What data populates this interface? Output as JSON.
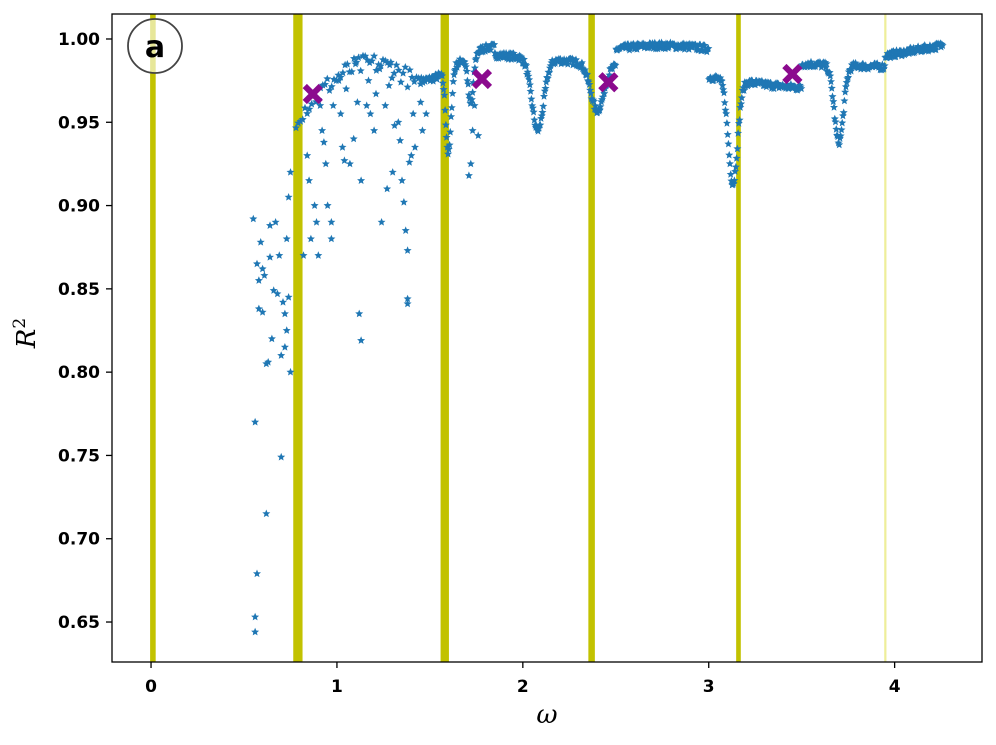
{
  "chart_data": {
    "type": "scatter",
    "xlabel": "ω",
    "ylabel": "R",
    "ylabel_superscript": "2",
    "panel_label": "a",
    "xlim": [
      -0.21,
      4.47
    ],
    "ylim": [
      0.626,
      1.015
    ],
    "x_ticks": [
      0,
      1,
      2,
      3,
      4
    ],
    "x_tick_labels": [
      "0",
      "1",
      "2",
      "3",
      "4"
    ],
    "y_ticks": [
      0.65,
      0.7,
      0.75,
      0.8,
      0.85,
      0.9,
      0.95,
      1.0
    ],
    "y_tick_labels": [
      "0.65",
      "0.70",
      "0.75",
      "0.80",
      "0.85",
      "0.90",
      "0.95",
      "1.00"
    ],
    "grid": false,
    "colors": {
      "points": "#1f77b4",
      "markers": "#8b0a8e",
      "bands": "#c2c200",
      "faint_band": "#eeee9a"
    },
    "vertical_bands": [
      {
        "x": 0.01,
        "width": 0.03,
        "opacity": 1.0
      },
      {
        "x": 0.79,
        "width": 0.05,
        "opacity": 1.0
      },
      {
        "x": 1.58,
        "width": 0.045,
        "opacity": 1.0
      },
      {
        "x": 2.37,
        "width": 0.035,
        "opacity": 1.0
      },
      {
        "x": 3.16,
        "width": 0.025,
        "opacity": 1.0
      },
      {
        "x": 3.95,
        "width": 0.012,
        "opacity": 0.45
      }
    ],
    "highlight_points": [
      {
        "x": 0.87,
        "y": 0.967
      },
      {
        "x": 1.78,
        "y": 0.976
      },
      {
        "x": 2.46,
        "y": 0.974
      },
      {
        "x": 3.45,
        "y": 0.979
      }
    ],
    "scatter_outliers": [
      [
        0.55,
        0.892
      ],
      [
        0.56,
        0.77
      ],
      [
        0.57,
        0.679
      ],
      [
        0.56,
        0.653
      ],
      [
        0.56,
        0.644
      ],
      [
        0.62,
        0.715
      ],
      [
        0.7,
        0.749
      ],
      [
        0.57,
        0.865
      ],
      [
        0.58,
        0.855
      ],
      [
        0.59,
        0.878
      ],
      [
        0.6,
        0.836
      ],
      [
        0.62,
        0.805
      ],
      [
        0.63,
        0.806
      ],
      [
        0.65,
        0.82
      ],
      [
        0.66,
        0.849
      ],
      [
        0.64,
        0.888
      ],
      [
        0.67,
        0.89
      ],
      [
        0.68,
        0.847
      ],
      [
        0.69,
        0.87
      ],
      [
        0.71,
        0.842
      ],
      [
        0.72,
        0.835
      ],
      [
        0.73,
        0.825
      ],
      [
        0.74,
        0.845
      ],
      [
        0.75,
        0.8
      ],
      [
        0.73,
        0.88
      ],
      [
        0.75,
        0.92
      ],
      [
        0.74,
        0.905
      ],
      [
        0.72,
        0.815
      ],
      [
        0.61,
        0.858
      ],
      [
        0.6,
        0.862
      ],
      [
        0.58,
        0.838
      ],
      [
        0.64,
        0.869
      ],
      [
        0.7,
        0.81
      ],
      [
        0.82,
        0.87
      ],
      [
        0.84,
        0.93
      ],
      [
        0.85,
        0.915
      ],
      [
        0.86,
        0.88
      ],
      [
        0.88,
        0.9
      ],
      [
        0.89,
        0.89
      ],
      [
        0.9,
        0.87
      ],
      [
        0.91,
        0.96
      ],
      [
        0.92,
        0.945
      ],
      [
        0.94,
        0.925
      ],
      [
        0.95,
        0.9
      ],
      [
        0.97,
        0.89
      ],
      [
        0.97,
        0.88
      ],
      [
        0.98,
        0.96
      ],
      [
        1.01,
        0.975
      ],
      [
        1.02,
        0.955
      ],
      [
        1.03,
        0.935
      ],
      [
        1.05,
        0.97
      ],
      [
        1.07,
        0.925
      ],
      [
        1.09,
        0.94
      ],
      [
        1.1,
        0.985
      ],
      [
        1.12,
        0.835
      ],
      [
        1.13,
        0.819
      ],
      [
        1.13,
        0.915
      ],
      [
        1.16,
        0.96
      ],
      [
        1.18,
        0.955
      ],
      [
        1.2,
        0.945
      ],
      [
        1.24,
        0.89
      ],
      [
        1.26,
        0.96
      ],
      [
        1.28,
        0.972
      ],
      [
        1.3,
        0.92
      ],
      [
        1.33,
        0.95
      ],
      [
        1.35,
        0.915
      ],
      [
        1.36,
        0.902
      ],
      [
        1.37,
        0.885
      ],
      [
        1.38,
        0.873
      ],
      [
        1.38,
        0.844
      ],
      [
        1.38,
        0.841
      ],
      [
        1.4,
        0.93
      ],
      [
        1.42,
        0.935
      ],
      [
        1.46,
        0.945
      ],
      [
        1.48,
        0.955
      ],
      [
        1.17,
        0.975
      ],
      [
        1.21,
        0.967
      ],
      [
        1.31,
        0.948
      ],
      [
        1.34,
        0.939
      ],
      [
        1.27,
        0.91
      ],
      [
        1.04,
        0.927
      ],
      [
        0.93,
        0.938
      ],
      [
        1.11,
        0.962
      ],
      [
        1.23,
        0.982
      ],
      [
        1.29,
        0.986
      ],
      [
        1.45,
        0.962
      ],
      [
        1.39,
        0.926
      ],
      [
        1.41,
        0.955
      ],
      [
        1.72,
        0.925
      ],
      [
        1.73,
        0.945
      ],
      [
        1.74,
        0.96
      ],
      [
        1.76,
        0.942
      ],
      [
        1.71,
        0.918
      ]
    ]
  }
}
